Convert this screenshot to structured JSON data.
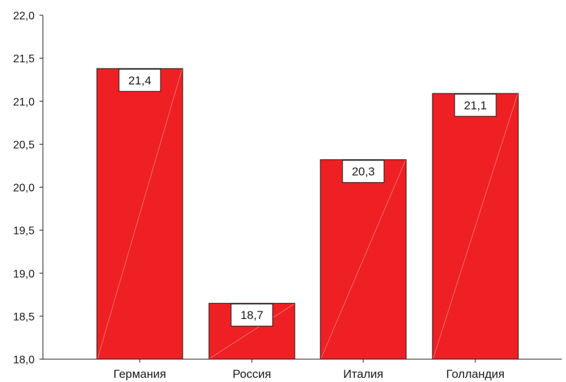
{
  "chart_data": {
    "type": "bar",
    "title": "",
    "xlabel": "",
    "ylabel": "",
    "categories": [
      "Германия",
      "Россия",
      "Италия",
      "Голландия"
    ],
    "values": [
      21.38,
      18.65,
      20.32,
      21.09
    ],
    "data_labels": [
      "21,4",
      "18,7",
      "20,3",
      "21,1"
    ],
    "ylim": [
      18.0,
      22.0
    ],
    "y_ticks": [
      18.0,
      18.5,
      19.0,
      19.5,
      20.0,
      20.5,
      21.0,
      21.5,
      22.0
    ],
    "y_tick_labels": [
      "18,0",
      "18,5",
      "19,0",
      "19,5",
      "20,0",
      "20,5",
      "21,0",
      "21,5",
      "22,0"
    ],
    "grid": false,
    "legend": "none",
    "bar_color": "#ee2024",
    "bar_edge_color": "#1a1a1a"
  }
}
